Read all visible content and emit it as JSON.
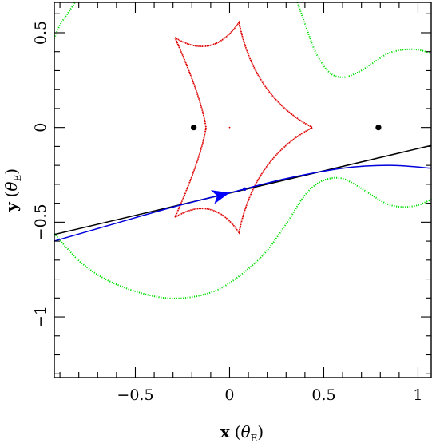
{
  "chart_data": {
    "type": "scatter",
    "title": "",
    "xlabel_parts": {
      "var": "x",
      "open": "(",
      "sym": "θ",
      "sub": "E",
      "close": ")"
    },
    "ylabel_parts": {
      "var": "y",
      "open": "(",
      "sym": "θ",
      "sub": "E",
      "close": ")"
    },
    "xlim": [
      -0.93,
      1.07
    ],
    "ylim": [
      -1.32,
      0.66
    ],
    "grid": false,
    "legend": "none",
    "xticks": {
      "major": [
        -0.5,
        0,
        0.5,
        1
      ],
      "labels": [
        "−0.5",
        "0",
        "0.5",
        "1"
      ],
      "minor_step": 0.1
    },
    "yticks": {
      "major": [
        -1,
        -0.5,
        0,
        0.5
      ],
      "labels": [
        "−1",
        "−0.5",
        "0",
        "0.5"
      ],
      "minor_step": 0.1
    },
    "colors": {
      "caustic": "#dd0000",
      "critical_curve": "#00dd00",
      "straight_trajectory": "#000000",
      "curved_trajectory": "#0000dd",
      "arrow": "#0000ff",
      "lens": "#000000"
    },
    "lens_masses": [
      {
        "x": -0.19,
        "y": 0.0
      },
      {
        "x": 0.79,
        "y": 0.0
      }
    ],
    "center_mark": {
      "x": 0.0,
      "y": 0.0
    },
    "caustic": {
      "cusps": [
        {
          "x": -0.29,
          "y": 0.475
        },
        {
          "x": 0.05,
          "y": 0.555
        },
        {
          "x": 0.44,
          "y": 0.0
        },
        {
          "x": 0.05,
          "y": -0.555
        },
        {
          "x": -0.29,
          "y": -0.475
        },
        {
          "x": -0.125,
          "y": 0.0
        }
      ],
      "sag": [
        0.32,
        0.42,
        0.42,
        0.32,
        0.32,
        0.32
      ]
    },
    "critical_curve": {
      "arcs": [
        [
          [
            -0.93,
            0.47
          ],
          [
            -0.9,
            0.54
          ],
          [
            -0.86,
            0.6
          ],
          [
            -0.82,
            0.66
          ]
        ],
        [
          [
            0.36,
            0.66
          ],
          [
            0.41,
            0.52
          ],
          [
            0.46,
            0.39
          ],
          [
            0.53,
            0.29
          ],
          [
            0.6,
            0.265
          ],
          [
            0.68,
            0.29
          ],
          [
            0.76,
            0.34
          ],
          [
            0.84,
            0.39
          ],
          [
            0.92,
            0.41
          ],
          [
            1.0,
            0.41
          ],
          [
            1.07,
            0.39
          ]
        ],
        [
          [
            -0.93,
            -0.56
          ],
          [
            -0.86,
            -0.64
          ],
          [
            -0.78,
            -0.72
          ],
          [
            -0.66,
            -0.8
          ],
          [
            -0.5,
            -0.865
          ],
          [
            -0.34,
            -0.9
          ],
          [
            -0.2,
            -0.895
          ],
          [
            -0.06,
            -0.855
          ],
          [
            0.07,
            -0.77
          ],
          [
            0.19,
            -0.66
          ],
          [
            0.3,
            -0.51
          ],
          [
            0.39,
            -0.37
          ],
          [
            0.46,
            -0.3
          ],
          [
            0.53,
            -0.27
          ],
          [
            0.6,
            -0.27
          ],
          [
            0.68,
            -0.31
          ],
          [
            0.76,
            -0.36
          ],
          [
            0.84,
            -0.405
          ],
          [
            0.92,
            -0.42
          ],
          [
            1.0,
            -0.41
          ],
          [
            1.07,
            -0.38
          ]
        ]
      ]
    },
    "straight_trajectory": {
      "x": [
        -0.93,
        1.07
      ],
      "y": [
        -0.565,
        -0.095
      ]
    },
    "curved_trajectory": {
      "x": [
        -0.93,
        -0.6,
        -0.3,
        0.0,
        0.3,
        0.6,
        0.85,
        1.07
      ],
      "y": [
        -0.6,
        -0.505,
        -0.42,
        -0.345,
        -0.27,
        -0.215,
        -0.2,
        -0.215
      ]
    },
    "arrow": {
      "x": 0.0,
      "y": -0.345,
      "direction_deg": 14
    },
    "source_point": {
      "x": 0.08,
      "y": -0.325
    }
  }
}
